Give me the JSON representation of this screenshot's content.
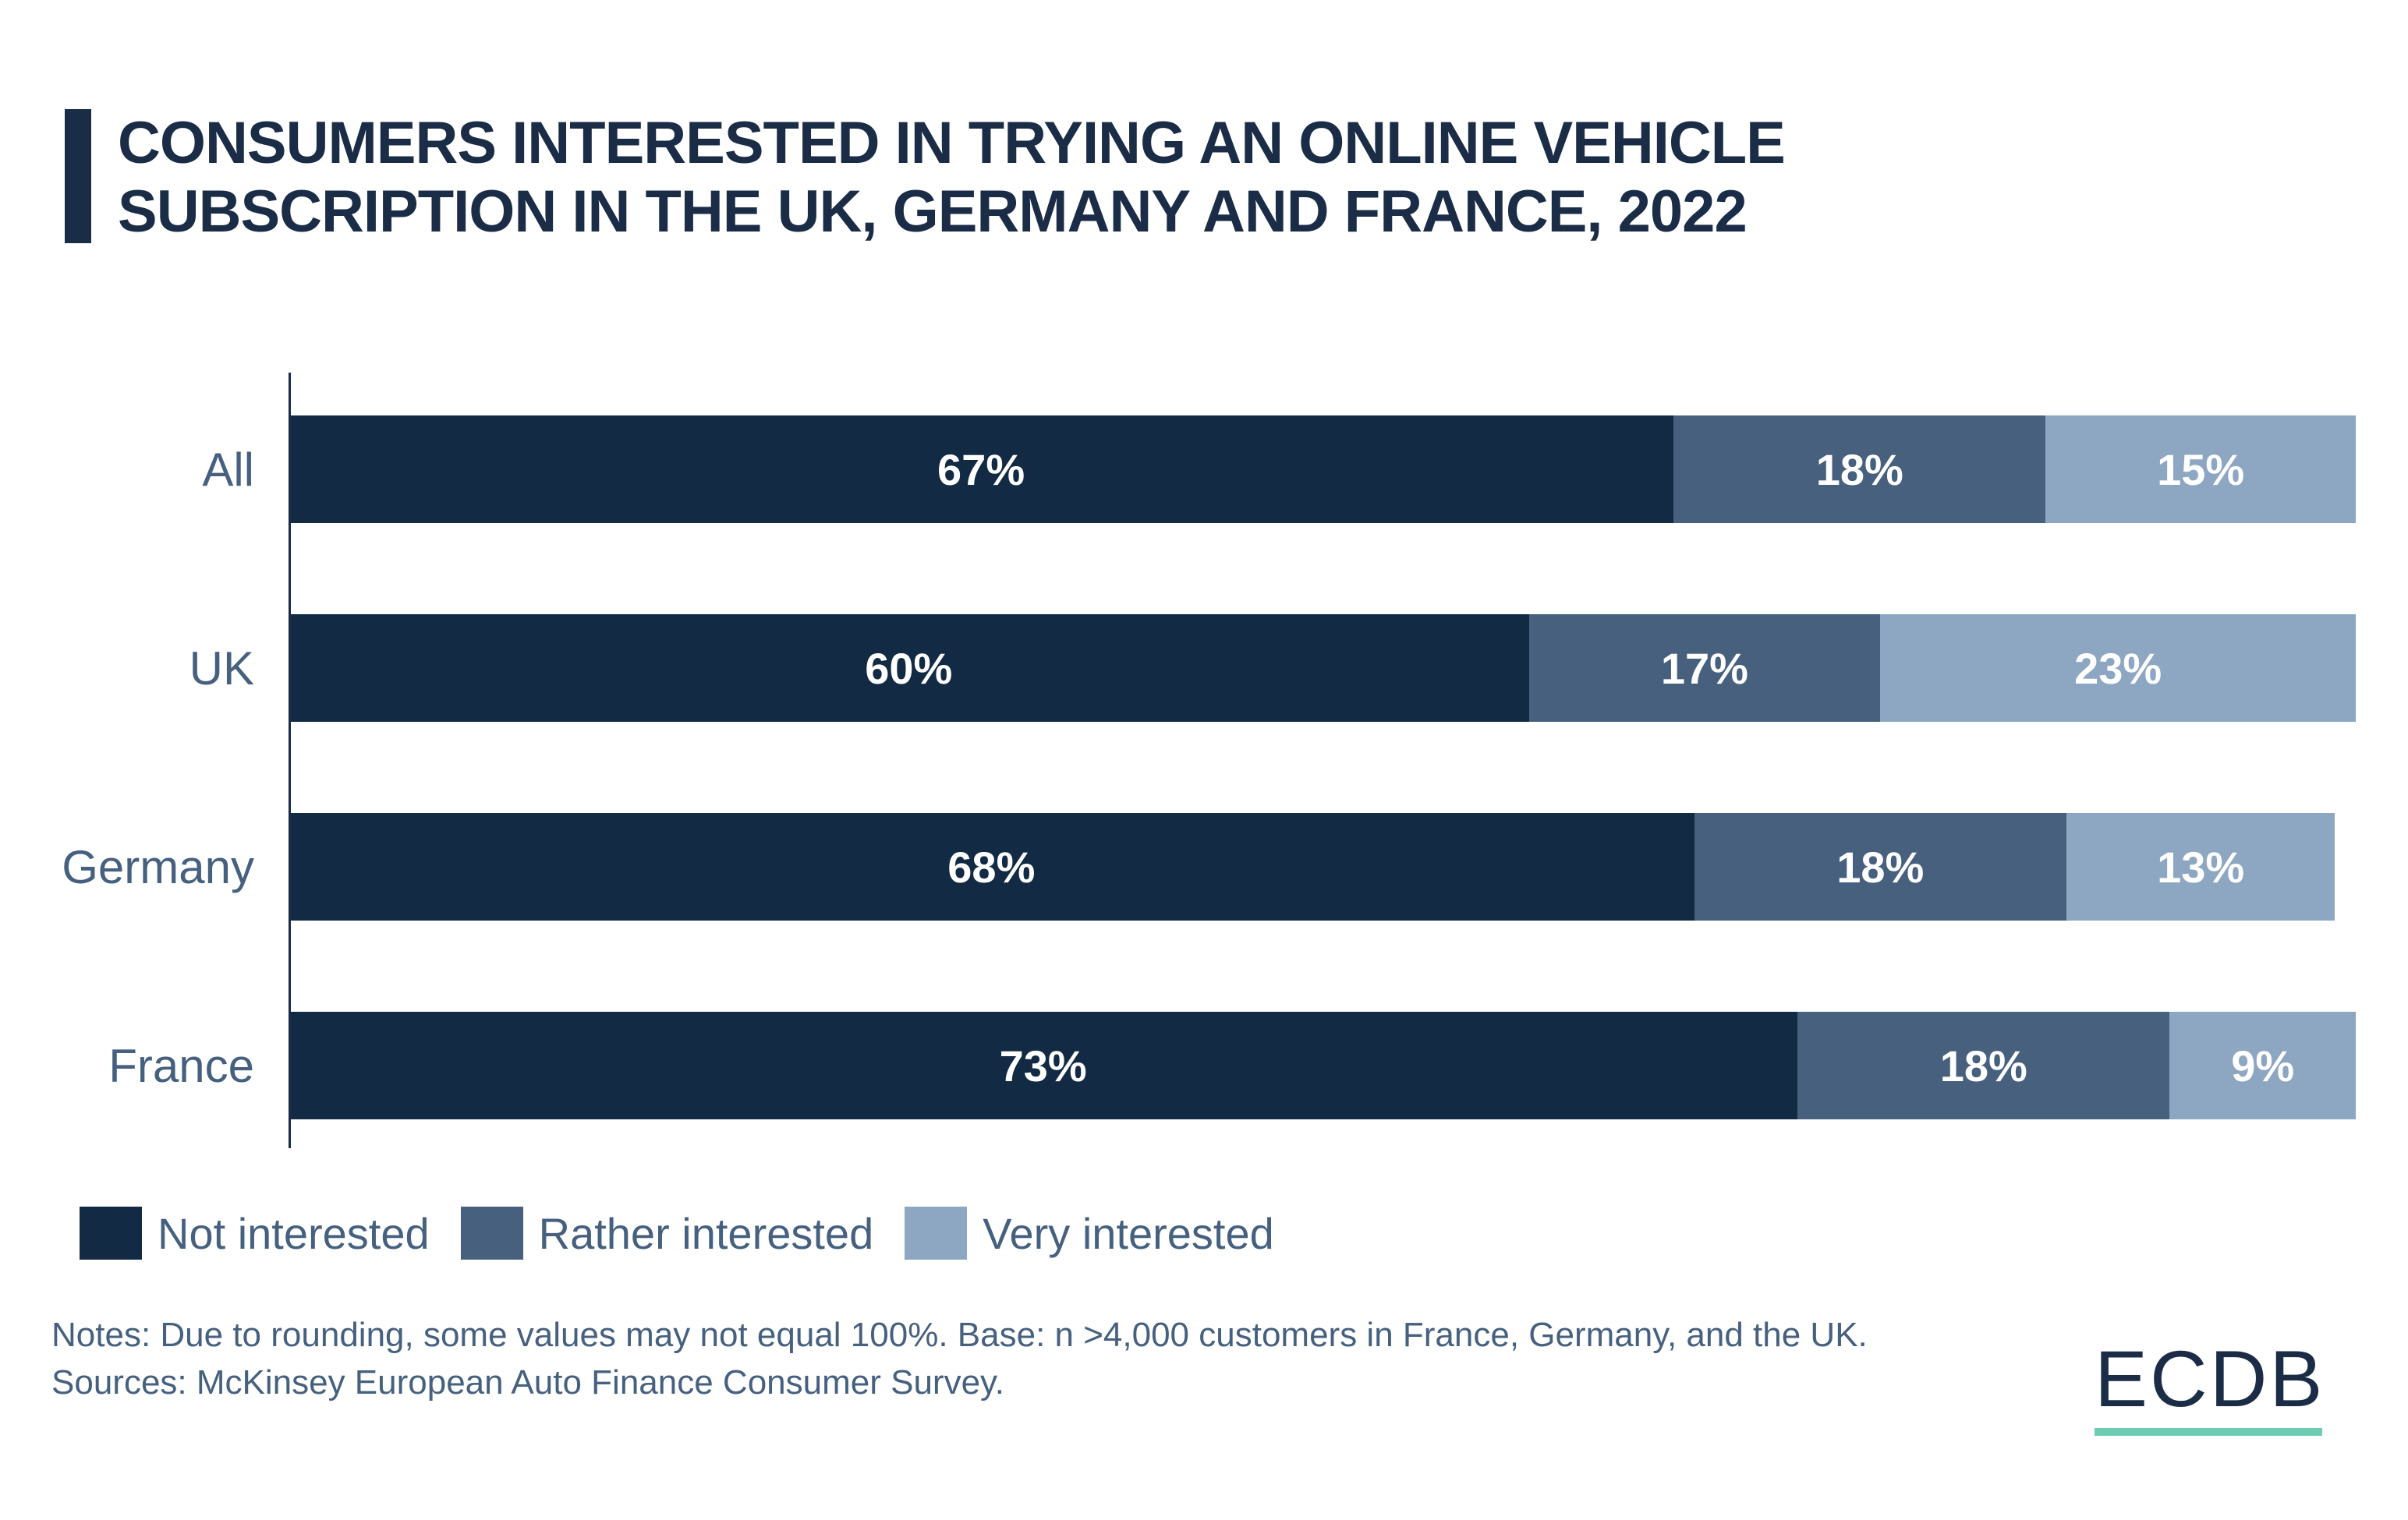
{
  "title": {
    "line1": "CONSUMERS INTERESTED IN TRYING AN ONLINE VEHICLE",
    "line2": "SUBSCRIPTION IN THE UK, GERMANY AND FRANCE, 2022"
  },
  "chart_data": {
    "type": "bar",
    "orientation": "horizontal",
    "stacked": true,
    "unit": "%",
    "xlim": [
      0,
      100
    ],
    "grid": false,
    "legend_position": "bottom",
    "categories": [
      "All",
      "UK",
      "Germany",
      "France"
    ],
    "series": [
      {
        "name": "Not interested",
        "color": "#122A43",
        "values": [
          67,
          60,
          68,
          73
        ]
      },
      {
        "name": "Rather interested",
        "color": "#47607E",
        "values": [
          18,
          17,
          18,
          18
        ]
      },
      {
        "name": "Very interested",
        "color": "#8DA6C1",
        "values": [
          15,
          23,
          13,
          9
        ]
      }
    ]
  },
  "notes": {
    "notes_text": "Notes: Due to rounding, some values may not equal 100%. Base: n >4,000 customers in France, Germany, and the UK.",
    "sources_text": "Sources: McKinsey European Auto Finance Consumer Survey."
  },
  "logo": {
    "text": "ECDB",
    "text_color": "#1B2C47",
    "underline_color": "#6FCBB2"
  },
  "colors": {
    "background": "#FFFFFF",
    "title": "#1B2C47",
    "axis": "#1B2C47",
    "category_label_text": "#46607F",
    "legend_text": "#46607F",
    "notes_text": "#46607F",
    "value_label_text": "#FFFFFF"
  }
}
